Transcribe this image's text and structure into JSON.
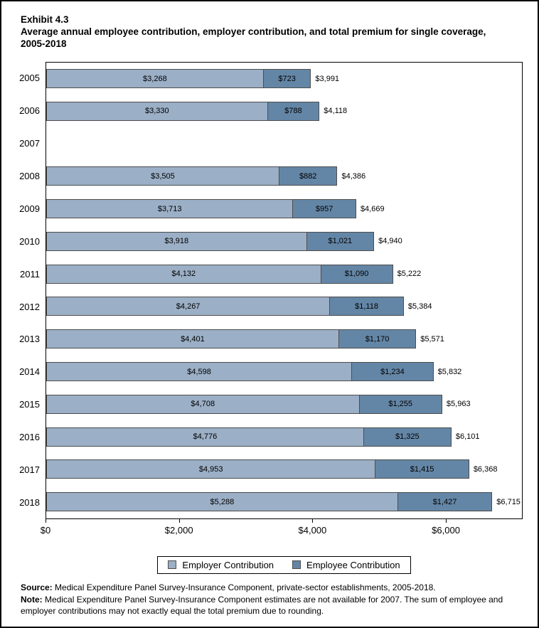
{
  "header": {
    "exhibit": "Exhibit 4.3",
    "title": "Average annual employee contribution, employer contribution, and total premium for single coverage, 2005-2018"
  },
  "chart_data": {
    "type": "bar",
    "orientation": "horizontal-stacked",
    "title": "Average annual employee contribution, employer contribution, and total premium for single coverage, 2005-2018",
    "categories": [
      "2005",
      "2006",
      "2007",
      "2008",
      "2009",
      "2010",
      "2011",
      "2012",
      "2013",
      "2014",
      "2015",
      "2016",
      "2017",
      "2018"
    ],
    "series": [
      {
        "name": "Employer Contribution",
        "color": "#9BAFC6",
        "values": [
          3268,
          3330,
          null,
          3505,
          3713,
          3918,
          4132,
          4267,
          4401,
          4598,
          4708,
          4776,
          4953,
          5288
        ],
        "labels": [
          "$3,268",
          "$3,330",
          null,
          "$3,505",
          "$3,713",
          "$3,918",
          "$4,132",
          "$4,267",
          "$4,401",
          "$4,598",
          "$4,708",
          "$4,776",
          "$4,953",
          "$5,288"
        ]
      },
      {
        "name": "Employee Contribution",
        "color": "#6486A6",
        "values": [
          723,
          788,
          null,
          882,
          957,
          1021,
          1090,
          1118,
          1170,
          1234,
          1255,
          1325,
          1415,
          1427
        ],
        "labels": [
          "$723",
          "$788",
          null,
          "$882",
          "$957",
          "$1,021",
          "$1,090",
          "$1,118",
          "$1,170",
          "$1,234",
          "$1,255",
          "$1,325",
          "$1,415",
          "$1,427"
        ]
      }
    ],
    "totals": {
      "values": [
        3991,
        4118,
        null,
        4386,
        4669,
        4940,
        5222,
        5384,
        5571,
        5832,
        5963,
        6101,
        6368,
        6715
      ],
      "labels": [
        "$3,991",
        "$4,118",
        null,
        "$4,386",
        "$4,669",
        "$4,940",
        "$5,222",
        "$5,384",
        "$5,571",
        "$5,832",
        "$5,963",
        "$6,101",
        "$6,368",
        "$6,715"
      ]
    },
    "x_axis": {
      "ticks": [
        0,
        2000,
        4000,
        6000
      ],
      "tick_labels": [
        "$0",
        "$2,000",
        "$4,000",
        "$6,000"
      ],
      "axis_max": 7150
    },
    "legend": {
      "position": "bottom-center",
      "entries": [
        "Employer Contribution",
        "Employee Contribution"
      ]
    },
    "missing_data_note": "2007 has no data"
  },
  "footer": {
    "source_label": "Source:",
    "source_text": " Medical Expenditure Panel Survey-Insurance Component, private-sector establishments, 2005-2018.",
    "note_label": "Note:",
    "note_text": " Medical Expenditure Panel Survey-Insurance Component estimates are not available for 2007. The sum of employee and employer contributions may not exactly equal the total premium due to rounding."
  },
  "colors": {
    "employer_bar": "#9BAFC6",
    "employee_bar": "#6486A6",
    "bar_border": "#4d4d4d",
    "frame_border": "#000000",
    "text": "#000000"
  }
}
